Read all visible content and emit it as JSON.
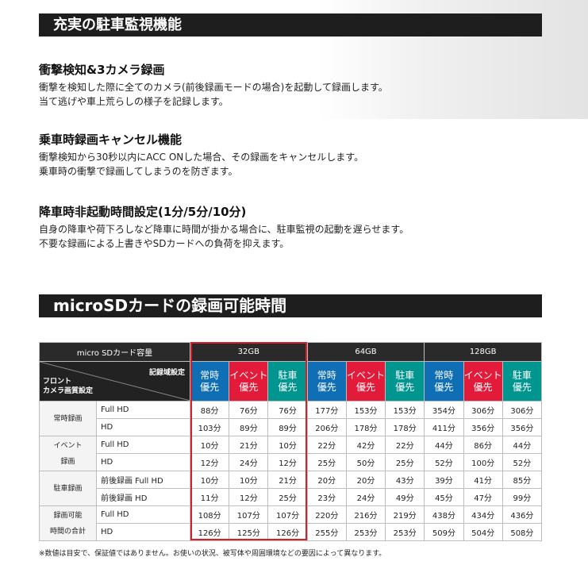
{
  "features": {
    "banner": "充実の駐車監視機能",
    "items": [
      {
        "title": "衝撃検知&3カメラ録画",
        "lines": [
          "衝撃を検知した際に全てのカメラ(前後録画モードの場合)を起動して録画します。",
          "当て逃げや車上荒らしの様子を記録します。"
        ]
      },
      {
        "title": "乗車時録画キャンセル機能",
        "lines": [
          "衝撃検知から30秒以内にACC ONした場合、その録画をキャンセルします。",
          "乗車時の衝撃で録画してしまうのを防ぎます。"
        ]
      },
      {
        "title": "降車時非起動時間設定(1分/5分/10分)",
        "lines": [
          "自身の降車や荷下ろしなど降車に時間が掛かる場合に、駐車監視の起動を遅らせます。",
          "不要な録画による上書きやSDカードへの負荷を抑えます。"
        ]
      }
    ]
  },
  "table": {
    "banner": "microSDカードの録画可能時間",
    "capacity_label": "micro SDカード容量",
    "capacities": [
      "32GB",
      "64GB",
      "128GB"
    ],
    "diag_top": "記録域設定",
    "diag_bottom_1": "フロント",
    "diag_bottom_2": "カメラ画質設定",
    "modes": [
      {
        "l1": "常時",
        "l2": "優先",
        "color": "#0f6eb4"
      },
      {
        "l1": "イベント",
        "l2": "優先",
        "color": "#e31b3a"
      },
      {
        "l1": "駐車",
        "l2": "優先",
        "color": "#00958e"
      }
    ],
    "groups": [
      {
        "label1": "常時録画",
        "label2": "",
        "rows": [
          {
            "quality": "Full HD",
            "values": [
              "88分",
              "76分",
              "76分",
              "177分",
              "153分",
              "153分",
              "354分",
              "306分",
              "306分"
            ]
          },
          {
            "quality": "HD",
            "values": [
              "103分",
              "89分",
              "89分",
              "206分",
              "178分",
              "178分",
              "411分",
              "356分",
              "356分"
            ]
          }
        ]
      },
      {
        "label1": "イベント",
        "label2": "録画",
        "rows": [
          {
            "quality": "Full HD",
            "values": [
              "10分",
              "21分",
              "10分",
              "22分",
              "42分",
              "22分",
              "44分",
              "86分",
              "44分"
            ]
          },
          {
            "quality": "HD",
            "values": [
              "12分",
              "24分",
              "12分",
              "25分",
              "50分",
              "25分",
              "52分",
              "100分",
              "52分"
            ]
          }
        ]
      },
      {
        "label1": "駐車録画",
        "label2": "",
        "rows": [
          {
            "quality": "前後録画 Full HD",
            "values": [
              "10分",
              "10分",
              "21分",
              "20分",
              "20分",
              "43分",
              "39分",
              "41分",
              "85分"
            ]
          },
          {
            "quality": "前後録画 HD",
            "values": [
              "11分",
              "12分",
              "25分",
              "23分",
              "24分",
              "49分",
              "45分",
              "47分",
              "99分"
            ]
          }
        ]
      },
      {
        "label1": "録画可能",
        "label2": "時間の合計",
        "rows": [
          {
            "quality": "Full HD",
            "values": [
              "108分",
              "107分",
              "107分",
              "220分",
              "216分",
              "219分",
              "438分",
              "434分",
              "436分"
            ]
          },
          {
            "quality": "HD",
            "values": [
              "126分",
              "125分",
              "126分",
              "255分",
              "253分",
              "253分",
              "509分",
              "504分",
              "508分"
            ]
          }
        ]
      }
    ],
    "note": "※数値は目安で、保証値ではありません。お使いの状況、被写体や周囲環境などの要因によって異なります。"
  }
}
